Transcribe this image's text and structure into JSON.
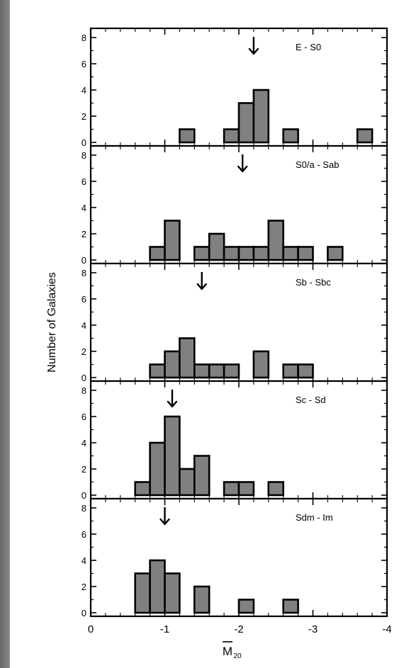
{
  "chart_data": {
    "type": "bar",
    "ylabel": "Number of Galaxies",
    "xlabel": "M",
    "xlabel_subscript": "20",
    "xlim": [
      0,
      -4
    ],
    "ylim": [
      0,
      8
    ],
    "xticks": [
      {
        "value": 0,
        "label": "0"
      },
      {
        "value": -1,
        "label": "-1"
      },
      {
        "value": -2,
        "label": "-2"
      },
      {
        "value": -3,
        "label": "-3"
      },
      {
        "value": -4,
        "label": "-4"
      }
    ],
    "yticks": [
      {
        "value": 0,
        "label": "0"
      },
      {
        "value": 2,
        "label": "2"
      },
      {
        "value": 4,
        "label": "4"
      },
      {
        "value": 6,
        "label": "6"
      },
      {
        "value": 8,
        "label": "8"
      }
    ],
    "bin_width": 0.2,
    "colors": {
      "fill": "#808080",
      "stroke": "#000000"
    },
    "panels": [
      {
        "label": "E - S0",
        "mean": -2.2,
        "bins": [
          {
            "x0": -1.2,
            "value": 1
          },
          {
            "x0": -1.8,
            "value": 1
          },
          {
            "x0": -2.0,
            "value": 3
          },
          {
            "x0": -2.2,
            "value": 4
          },
          {
            "x0": -2.6,
            "value": 1
          },
          {
            "x0": -3.6,
            "value": 1
          }
        ]
      },
      {
        "label": "S0/a - Sab",
        "mean": -2.05,
        "bins": [
          {
            "x0": -0.8,
            "value": 1
          },
          {
            "x0": -1.0,
            "value": 3
          },
          {
            "x0": -1.4,
            "value": 1
          },
          {
            "x0": -1.6,
            "value": 2
          },
          {
            "x0": -1.8,
            "value": 1
          },
          {
            "x0": -2.0,
            "value": 1
          },
          {
            "x0": -2.2,
            "value": 1
          },
          {
            "x0": -2.4,
            "value": 3
          },
          {
            "x0": -2.6,
            "value": 1
          },
          {
            "x0": -2.8,
            "value": 1
          },
          {
            "x0": -3.2,
            "value": 1
          }
        ]
      },
      {
        "label": "Sb - Sbc",
        "mean": -1.5,
        "bins": [
          {
            "x0": -0.8,
            "value": 1
          },
          {
            "x0": -1.0,
            "value": 2
          },
          {
            "x0": -1.2,
            "value": 3
          },
          {
            "x0": -1.4,
            "value": 1
          },
          {
            "x0": -1.6,
            "value": 1
          },
          {
            "x0": -1.8,
            "value": 1
          },
          {
            "x0": -2.2,
            "value": 2
          },
          {
            "x0": -2.6,
            "value": 1
          },
          {
            "x0": -2.8,
            "value": 1
          }
        ]
      },
      {
        "label": "Sc - Sd",
        "mean": -1.1,
        "bins": [
          {
            "x0": -0.6,
            "value": 1
          },
          {
            "x0": -0.8,
            "value": 4
          },
          {
            "x0": -1.0,
            "value": 6
          },
          {
            "x0": -1.2,
            "value": 2
          },
          {
            "x0": -1.4,
            "value": 3
          },
          {
            "x0": -1.8,
            "value": 1
          },
          {
            "x0": -2.0,
            "value": 1
          },
          {
            "x0": -2.4,
            "value": 1
          }
        ]
      },
      {
        "label": "Sdm - Im",
        "mean": -1.0,
        "bins": [
          {
            "x0": -0.6,
            "value": 3
          },
          {
            "x0": -0.8,
            "value": 4
          },
          {
            "x0": -1.0,
            "value": 3
          },
          {
            "x0": -1.4,
            "value": 2
          },
          {
            "x0": -2.0,
            "value": 1
          },
          {
            "x0": -2.6,
            "value": 1
          }
        ]
      }
    ]
  }
}
